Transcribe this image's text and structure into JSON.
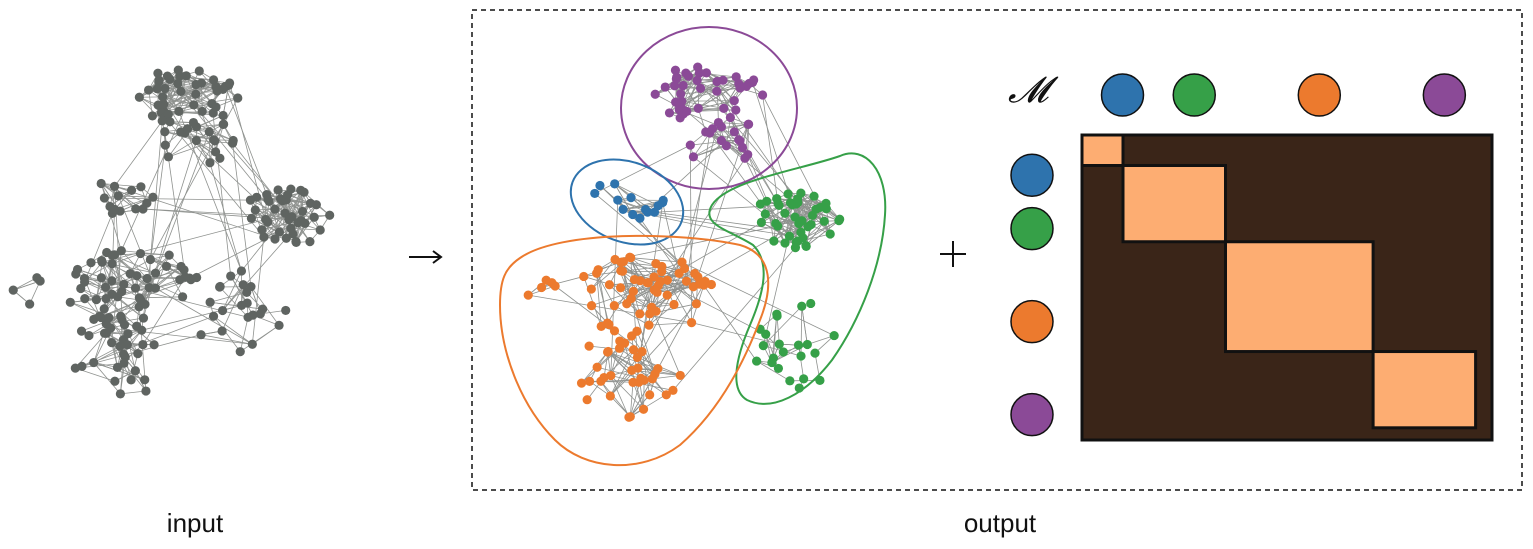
{
  "captions": {
    "input": "input",
    "output": "output"
  },
  "symbols": {
    "arrow": "→",
    "plus": "+",
    "matrix": "𝓜"
  },
  "colors": {
    "node_input": "#5f6461",
    "edge": "#8f928f",
    "matrix_bg": "#3a2518",
    "matrix_block": "#fdad72",
    "frame": "#111111"
  },
  "communities": [
    {
      "id": "blue",
      "color": "#2e73ad",
      "size": 0.1
    },
    {
      "id": "green",
      "color": "#36a048",
      "size": 0.25
    },
    {
      "id": "orange",
      "color": "#ec7a2e",
      "size": 0.36
    },
    {
      "id": "purple",
      "color": "#8b4a97",
      "size": 0.25
    }
  ],
  "matrix": {
    "type": "block-diagonal",
    "rows": [
      "blue",
      "green",
      "orange",
      "purple"
    ],
    "cols": [
      "blue",
      "green",
      "orange",
      "purple"
    ]
  }
}
